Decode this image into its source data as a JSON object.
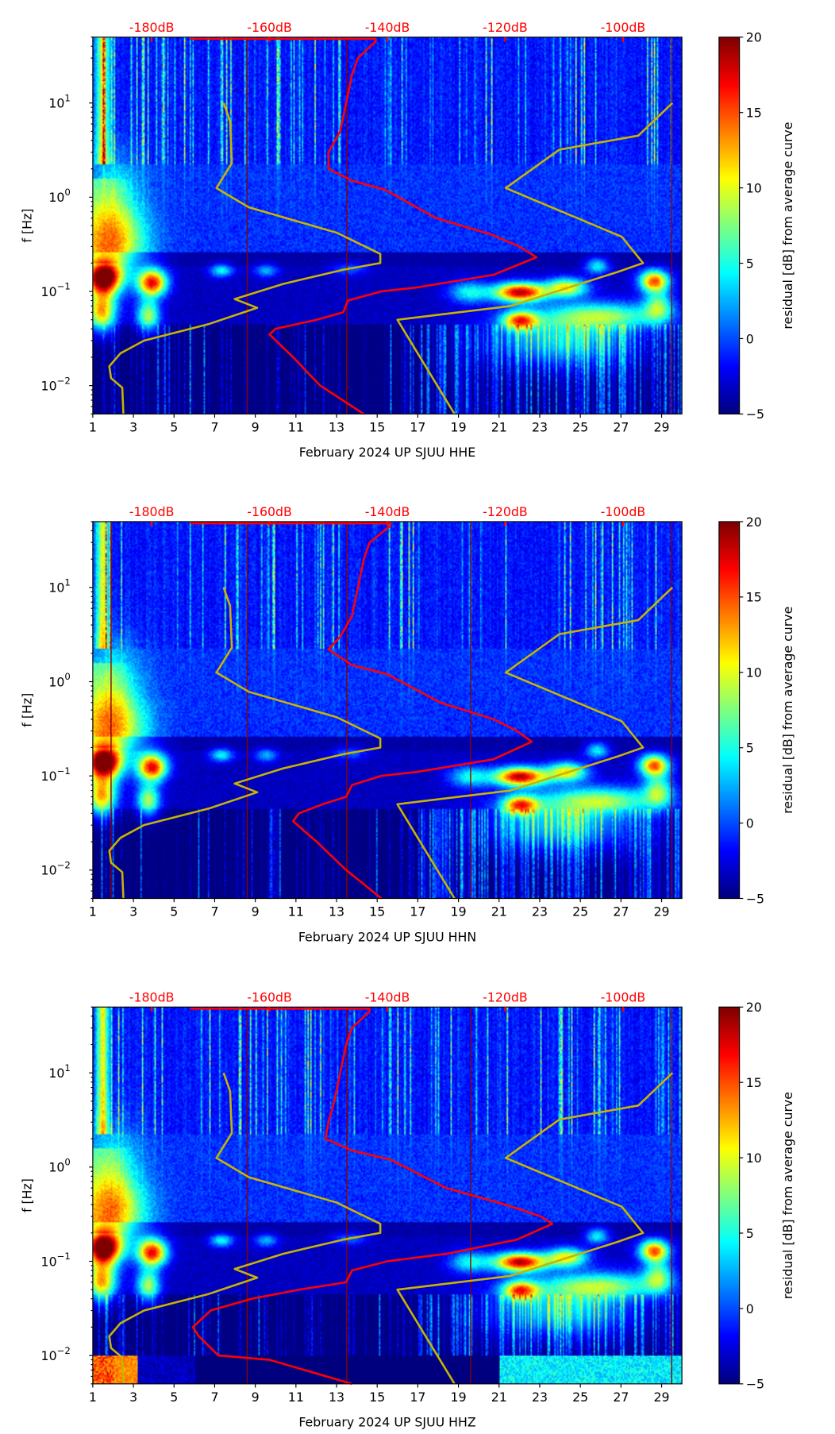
{
  "chart_data": [
    {
      "type": "heatmap",
      "xlabel": "February 2024 UP SJUU  HHE",
      "channel": "HHE",
      "ylabel": "f [Hz]",
      "xlim": [
        1,
        30
      ],
      "xticks": [
        "1",
        "3",
        "5",
        "7",
        "9",
        "11",
        "13",
        "15",
        "17",
        "19",
        "21",
        "23",
        "25",
        "27",
        "29"
      ],
      "ylim": [
        0.005,
        50
      ],
      "yscale": "log",
      "yticks": [
        {
          "base": "10",
          "exp": "1",
          "value": 10
        },
        {
          "base": "10",
          "exp": "0",
          "value": 1
        },
        {
          "base": "10",
          "exp": "−1",
          "value": 0.1
        },
        {
          "base": "10",
          "exp": "−2",
          "value": 0.01
        }
      ],
      "top_axis": {
        "range_db": [
          -190,
          -90
        ],
        "values": [
          -180,
          -160,
          -140,
          -120,
          -100
        ],
        "labels": [
          "-180dB",
          "-160dB",
          "-140dB",
          "-120dB",
          "-100dB"
        ]
      },
      "colorbar": {
        "label": "residual [dB] from average curve",
        "range": [
          -5,
          20
        ],
        "ticks": [
          "20",
          "15",
          "10",
          "5",
          "0",
          "−5"
        ],
        "tick_values": [
          20,
          15,
          10,
          5,
          0,
          -5
        ]
      },
      "gap_days": [
        8.6,
        13.5,
        29.5
      ],
      "psd_curve": {
        "color": "#ff0000",
        "points_db_hz": [
          [
            -173.5,
            48
          ],
          [
            -142,
            48
          ],
          [
            -142,
            45
          ],
          [
            -145,
            30
          ],
          [
            -146,
            20
          ],
          [
            -147,
            10
          ],
          [
            -148,
            5
          ],
          [
            -150,
            3
          ],
          [
            -150,
            2
          ],
          [
            -146,
            1.5
          ],
          [
            -140.4,
            1.2
          ],
          [
            -131.7,
            0.6
          ],
          [
            -122.3,
            0.4
          ],
          [
            -117.6,
            0.3
          ],
          [
            -114.7,
            0.23
          ],
          [
            -122,
            0.15
          ],
          [
            -135,
            0.11
          ],
          [
            -141,
            0.1
          ],
          [
            -146.7,
            0.08
          ],
          [
            -147.5,
            0.06
          ],
          [
            -152,
            0.05
          ],
          [
            -159,
            0.04
          ],
          [
            -160,
            0.035
          ],
          [
            -156,
            0.02
          ],
          [
            -151.4,
            0.01
          ],
          [
            -144,
            0.005
          ]
        ]
      },
      "low_noise_model": {
        "color": "#c8b400",
        "points_db_hz": [
          [
            -167.8,
            10
          ],
          [
            -166.7,
            6.4
          ],
          [
            -166.4,
            2.3
          ],
          [
            -169,
            1.25
          ],
          [
            -163.5,
            0.78
          ],
          [
            -148.6,
            0.42
          ],
          [
            -141.2,
            0.25
          ],
          [
            -141.2,
            0.2
          ],
          [
            -147.5,
            0.17
          ],
          [
            -157.7,
            0.12
          ],
          [
            -165.9,
            0.083
          ],
          [
            -162.1,
            0.067
          ],
          [
            -170.3,
            0.045
          ],
          [
            -181.3,
            0.03
          ],
          [
            -185.3,
            0.022
          ],
          [
            -187.2,
            0.016
          ],
          [
            -186.9,
            0.012
          ],
          [
            -185,
            0.0095
          ],
          [
            -184.8,
            0.005
          ]
        ]
      },
      "high_noise_model": {
        "color": "#c8b400",
        "points_db_hz": [
          [
            -91.6,
            10
          ],
          [
            -97.4,
            4.5
          ],
          [
            -110.8,
            3.2
          ],
          [
            -119.9,
            1.25
          ],
          [
            -100.2,
            0.38
          ],
          [
            -96.6,
            0.2
          ],
          [
            -101,
            0.16
          ],
          [
            -119.1,
            0.07
          ],
          [
            -138.3,
            0.05
          ],
          [
            -128.6,
            0.005
          ]
        ]
      }
    },
    {
      "type": "heatmap",
      "xlabel": "February 2024 UP SJUU  HHN",
      "channel": "HHN",
      "ylabel": "f [Hz]",
      "xlim": [
        1,
        30
      ],
      "xticks": [
        "1",
        "3",
        "5",
        "7",
        "9",
        "11",
        "13",
        "15",
        "17",
        "19",
        "21",
        "23",
        "25",
        "27",
        "29"
      ],
      "ylim": [
        0.005,
        50
      ],
      "yscale": "log",
      "yticks": [
        {
          "base": "10",
          "exp": "1",
          "value": 10
        },
        {
          "base": "10",
          "exp": "0",
          "value": 1
        },
        {
          "base": "10",
          "exp": "−1",
          "value": 0.1
        },
        {
          "base": "10",
          "exp": "−2",
          "value": 0.01
        }
      ],
      "top_axis": {
        "range_db": [
          -190,
          -90
        ],
        "values": [
          -180,
          -160,
          -140,
          -120,
          -100
        ],
        "labels": [
          "-180dB",
          "-160dB",
          "-140dB",
          "-120dB",
          "-100dB"
        ]
      },
      "colorbar": {
        "label": "residual [dB] from average curve",
        "range": [
          -5,
          20
        ],
        "ticks": [
          "20",
          "15",
          "10",
          "5",
          "0",
          "−5"
        ],
        "tick_values": [
          20,
          15,
          10,
          5,
          0,
          -5
        ]
      },
      "gap_days": [
        1.9,
        8.6,
        13.5,
        19.6,
        29.5
      ],
      "psd_curve": {
        "color": "#ff0000",
        "points_db_hz": [
          [
            -173.5,
            48
          ],
          [
            -139.5,
            48
          ],
          [
            -139.5,
            45
          ],
          [
            -143,
            30
          ],
          [
            -144,
            20
          ],
          [
            -145,
            10
          ],
          [
            -146,
            5
          ],
          [
            -148,
            3
          ],
          [
            -150,
            2.2
          ],
          [
            -146,
            1.5
          ],
          [
            -140,
            1.2
          ],
          [
            -131,
            0.6
          ],
          [
            -122,
            0.4
          ],
          [
            -118,
            0.3
          ],
          [
            -115.5,
            0.23
          ],
          [
            -122,
            0.15
          ],
          [
            -135,
            0.11
          ],
          [
            -141,
            0.1
          ],
          [
            -146,
            0.08
          ],
          [
            -147,
            0.06
          ],
          [
            -151,
            0.05
          ],
          [
            -155,
            0.04
          ],
          [
            -156,
            0.033
          ],
          [
            -152,
            0.02
          ],
          [
            -147,
            0.01
          ],
          [
            -141,
            0.005
          ]
        ]
      },
      "low_noise_model": {
        "color": "#c8b400",
        "points_db_hz": [
          [
            -167.8,
            10
          ],
          [
            -166.7,
            6.4
          ],
          [
            -166.4,
            2.3
          ],
          [
            -169,
            1.25
          ],
          [
            -163.5,
            0.78
          ],
          [
            -148.6,
            0.42
          ],
          [
            -141.2,
            0.25
          ],
          [
            -141.2,
            0.2
          ],
          [
            -147.5,
            0.17
          ],
          [
            -157.7,
            0.12
          ],
          [
            -165.9,
            0.083
          ],
          [
            -162.1,
            0.067
          ],
          [
            -170.3,
            0.045
          ],
          [
            -181.3,
            0.03
          ],
          [
            -185.3,
            0.022
          ],
          [
            -187.2,
            0.016
          ],
          [
            -186.9,
            0.012
          ],
          [
            -185,
            0.0095
          ],
          [
            -184.8,
            0.005
          ]
        ]
      },
      "high_noise_model": {
        "color": "#c8b400",
        "points_db_hz": [
          [
            -91.6,
            10
          ],
          [
            -97.4,
            4.5
          ],
          [
            -110.8,
            3.2
          ],
          [
            -119.9,
            1.25
          ],
          [
            -100.2,
            0.38
          ],
          [
            -96.6,
            0.2
          ],
          [
            -101,
            0.16
          ],
          [
            -119.1,
            0.07
          ],
          [
            -138.3,
            0.05
          ],
          [
            -128.6,
            0.005
          ]
        ]
      }
    },
    {
      "type": "heatmap",
      "xlabel": "February 2024 UP SJUU  HHZ",
      "channel": "HHZ",
      "ylabel": "f [Hz]",
      "xlim": [
        1,
        30
      ],
      "xticks": [
        "1",
        "3",
        "5",
        "7",
        "9",
        "11",
        "13",
        "15",
        "17",
        "19",
        "21",
        "23",
        "25",
        "27",
        "29"
      ],
      "ylim": [
        0.005,
        50
      ],
      "yscale": "log",
      "yticks": [
        {
          "base": "10",
          "exp": "1",
          "value": 10
        },
        {
          "base": "10",
          "exp": "0",
          "value": 1
        },
        {
          "base": "10",
          "exp": "−1",
          "value": 0.1
        },
        {
          "base": "10",
          "exp": "−2",
          "value": 0.01
        }
      ],
      "top_axis": {
        "range_db": [
          -190,
          -90
        ],
        "values": [
          -180,
          -160,
          -140,
          -120,
          -100
        ],
        "labels": [
          "-180dB",
          "-160dB",
          "-140dB",
          "-120dB",
          "-100dB"
        ]
      },
      "colorbar": {
        "label": "residual [dB] from average curve",
        "range": [
          -5,
          20
        ],
        "ticks": [
          "20",
          "15",
          "10",
          "5",
          "0",
          "−5"
        ],
        "tick_values": [
          20,
          15,
          10,
          5,
          0,
          -5
        ]
      },
      "gap_days": [
        8.6,
        13.5,
        19.6,
        29.5
      ],
      "psd_curve": {
        "color": "#ff0000",
        "points_db_hz": [
          [
            -173.5,
            48
          ],
          [
            -143,
            48
          ],
          [
            -143,
            45
          ],
          [
            -146,
            30
          ],
          [
            -147,
            20
          ],
          [
            -148,
            10
          ],
          [
            -149,
            5
          ],
          [
            -150,
            3
          ],
          [
            -150.5,
            2
          ],
          [
            -146,
            1.5
          ],
          [
            -139.5,
            1.2
          ],
          [
            -130,
            0.6
          ],
          [
            -120,
            0.4
          ],
          [
            -114,
            0.3
          ],
          [
            -112,
            0.25
          ],
          [
            -118,
            0.17
          ],
          [
            -130,
            0.12
          ],
          [
            -140,
            0.1
          ],
          [
            -146,
            0.08
          ],
          [
            -147,
            0.06
          ],
          [
            -155,
            0.05
          ],
          [
            -163,
            0.04
          ],
          [
            -170,
            0.03
          ],
          [
            -173,
            0.02
          ],
          [
            -172,
            0.016
          ],
          [
            -168.7,
            0.01
          ],
          [
            -160,
            0.009
          ],
          [
            -146,
            0.005
          ]
        ]
      },
      "low_noise_model": {
        "color": "#c8b400",
        "points_db_hz": [
          [
            -167.8,
            10
          ],
          [
            -166.7,
            6.4
          ],
          [
            -166.4,
            2.3
          ],
          [
            -169,
            1.25
          ],
          [
            -163.5,
            0.78
          ],
          [
            -148.6,
            0.42
          ],
          [
            -141.2,
            0.25
          ],
          [
            -141.2,
            0.2
          ],
          [
            -147.5,
            0.17
          ],
          [
            -157.7,
            0.12
          ],
          [
            -165.9,
            0.083
          ],
          [
            -162.1,
            0.067
          ],
          [
            -170.3,
            0.045
          ],
          [
            -181.3,
            0.03
          ],
          [
            -185.3,
            0.022
          ],
          [
            -187.2,
            0.016
          ],
          [
            -186.9,
            0.012
          ],
          [
            -185,
            0.0095
          ],
          [
            -184.8,
            0.005
          ]
        ]
      },
      "high_noise_model": {
        "color": "#c8b400",
        "points_db_hz": [
          [
            -91.6,
            10
          ],
          [
            -97.4,
            4.5
          ],
          [
            -110.8,
            3.2
          ],
          [
            -119.9,
            1.25
          ],
          [
            -100.2,
            0.38
          ],
          [
            -96.6,
            0.2
          ],
          [
            -101,
            0.16
          ],
          [
            -119.1,
            0.07
          ],
          [
            -138.3,
            0.05
          ],
          [
            -128.6,
            0.005
          ]
        ]
      }
    }
  ]
}
